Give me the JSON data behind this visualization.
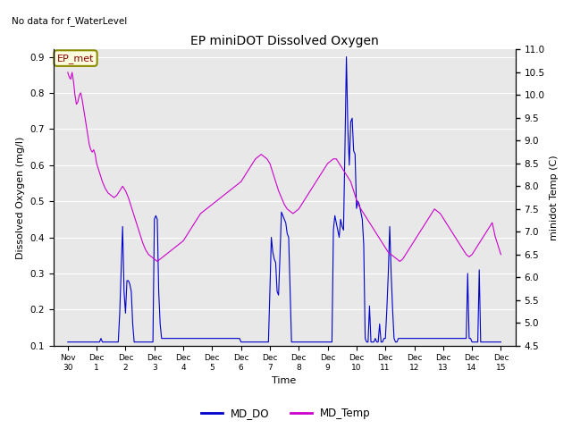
{
  "title": "EP miniDOT Dissolved Oxygen",
  "top_left_text": "No data for f_WaterLevel",
  "annotation_text": "EP_met",
  "xlabel": "Time",
  "ylabel_left": "Dissolved Oxygen (mg/l)",
  "ylabel_right": "minidot Temp (C)",
  "xlim_start": -0.5,
  "xlim_end": 15.5,
  "ylim_left": [
    0.1,
    0.92
  ],
  "ylim_right": [
    4.5,
    11.0
  ],
  "yticks_left": [
    0.1,
    0.2,
    0.3,
    0.4,
    0.5,
    0.6,
    0.7,
    0.8,
    0.9
  ],
  "yticks_right": [
    4.5,
    5.0,
    5.5,
    6.0,
    6.5,
    7.0,
    7.5,
    8.0,
    8.5,
    9.0,
    9.5,
    10.0,
    10.5,
    11.0
  ],
  "xtick_labels": [
    "Nov 30",
    "Dec 1",
    "Dec 2",
    "Dec 3",
    "Dec 4",
    "Dec 5",
    "Dec 6",
    "Dec 7",
    "Dec 8",
    "Dec 9",
    "Dec 10",
    "Dec 11",
    "Dec 12",
    "Dec 13",
    "Dec 14",
    "Dec 15"
  ],
  "xtick_positions": [
    0,
    1,
    2,
    3,
    4,
    5,
    6,
    7,
    8,
    9,
    10,
    11,
    12,
    13,
    14,
    15
  ],
  "color_DO": "#0000cc",
  "color_Temp": "#cc00cc",
  "bg_color": "#e8e8e8",
  "legend_DO": "MD_DO",
  "legend_Temp": "MD_Temp",
  "MD_DO_x": [
    0.0,
    0.05,
    0.1,
    0.15,
    0.2,
    0.25,
    0.3,
    0.35,
    0.4,
    0.45,
    0.5,
    0.55,
    0.6,
    0.65,
    0.7,
    0.75,
    0.8,
    0.85,
    0.9,
    0.95,
    1.0,
    1.05,
    1.1,
    1.15,
    1.2,
    1.25,
    1.35,
    1.4,
    1.45,
    1.5,
    1.55,
    1.6,
    1.65,
    1.7,
    1.75,
    1.8,
    1.85,
    1.9,
    1.95,
    2.0,
    2.05,
    2.1,
    2.15,
    2.2,
    2.25,
    2.3,
    2.35,
    2.4,
    2.45,
    2.5,
    2.55,
    2.6,
    2.65,
    2.7,
    2.75,
    2.8,
    2.85,
    2.9,
    2.95,
    3.0,
    3.05,
    3.1,
    3.15,
    3.2,
    3.25,
    3.3,
    3.35,
    3.4,
    3.45,
    3.5,
    3.55,
    3.6,
    3.65,
    3.7,
    3.75,
    3.8,
    3.85,
    3.9,
    3.95,
    4.0,
    4.05,
    4.1,
    4.15,
    4.2,
    4.25,
    4.3,
    4.35,
    4.4,
    4.45,
    4.5,
    4.55,
    4.6,
    4.65,
    4.7,
    4.75,
    4.8,
    4.85,
    4.9,
    4.95,
    5.0,
    5.05,
    5.1,
    5.15,
    5.2,
    5.25,
    5.3,
    5.35,
    5.4,
    5.45,
    5.5,
    5.55,
    5.6,
    5.65,
    5.7,
    5.75,
    5.8,
    5.85,
    5.9,
    5.95,
    6.0,
    6.05,
    6.1,
    6.15,
    6.2,
    6.25,
    6.3,
    6.35,
    6.4,
    6.45,
    6.5,
    6.55,
    6.6,
    6.65,
    6.7,
    6.75,
    6.8,
    6.85,
    6.9,
    6.95,
    7.0,
    7.05,
    7.1,
    7.15,
    7.2,
    7.25,
    7.3,
    7.35,
    7.4,
    7.45,
    7.5,
    7.55,
    7.6,
    7.65,
    7.7,
    7.75,
    7.8,
    7.85,
    7.9,
    7.95,
    8.0,
    8.05,
    8.1,
    8.15,
    8.2,
    8.25,
    8.3,
    8.35,
    8.4,
    8.45,
    8.5,
    8.55,
    8.6,
    8.65,
    8.7,
    8.75,
    8.8,
    8.85,
    8.9,
    8.95,
    9.0,
    9.05,
    9.1,
    9.15,
    9.2,
    9.25,
    9.3,
    9.35,
    9.4,
    9.45,
    9.5,
    9.55,
    9.6,
    9.65,
    9.7,
    9.75,
    9.8,
    9.85,
    9.9,
    9.95,
    10.0,
    10.05,
    10.1,
    10.15,
    10.2,
    10.25,
    10.3,
    10.35,
    10.4,
    10.45,
    10.5,
    10.55,
    10.6,
    10.65,
    10.7,
    10.75,
    10.8,
    10.85,
    10.9,
    10.95,
    11.0,
    11.05,
    11.1,
    11.15,
    11.2,
    11.25,
    11.3,
    11.35,
    11.4,
    11.45,
    11.5,
    11.55,
    11.6,
    11.65,
    11.7,
    11.75,
    11.8,
    11.85,
    11.9,
    11.95,
    12.0,
    12.05,
    12.1,
    12.15,
    12.2,
    12.25,
    12.3,
    12.35,
    12.4,
    12.45,
    12.5,
    12.55,
    12.6,
    12.65,
    12.7,
    12.75,
    12.8,
    12.85,
    12.9,
    12.95,
    13.0,
    13.05,
    13.1,
    13.15,
    13.2,
    13.25,
    13.3,
    13.35,
    13.4,
    13.45,
    13.5,
    13.55,
    13.6,
    13.65,
    13.7,
    13.75,
    13.8,
    13.85,
    13.9,
    13.95,
    14.0,
    14.05,
    14.1,
    14.15,
    14.2,
    14.25,
    14.3,
    14.35,
    14.4,
    14.45,
    14.5,
    14.55,
    14.6,
    14.65,
    14.7,
    14.75,
    14.8,
    14.85,
    14.9,
    14.95,
    15.0
  ],
  "MD_DO_y": [
    0.11,
    0.11,
    0.11,
    0.11,
    0.11,
    0.11,
    0.11,
    0.11,
    0.11,
    0.11,
    0.11,
    0.11,
    0.11,
    0.11,
    0.11,
    0.11,
    0.11,
    0.11,
    0.11,
    0.11,
    0.11,
    0.11,
    0.11,
    0.12,
    0.11,
    0.11,
    0.11,
    0.11,
    0.11,
    0.11,
    0.11,
    0.11,
    0.11,
    0.11,
    0.11,
    0.19,
    0.31,
    0.43,
    0.25,
    0.19,
    0.28,
    0.28,
    0.27,
    0.25,
    0.16,
    0.11,
    0.11,
    0.11,
    0.11,
    0.11,
    0.11,
    0.11,
    0.11,
    0.11,
    0.11,
    0.11,
    0.11,
    0.11,
    0.11,
    0.45,
    0.46,
    0.45,
    0.25,
    0.16,
    0.12,
    0.12,
    0.12,
    0.12,
    0.12,
    0.12,
    0.12,
    0.12,
    0.12,
    0.12,
    0.12,
    0.12,
    0.12,
    0.12,
    0.12,
    0.12,
    0.12,
    0.12,
    0.12,
    0.12,
    0.12,
    0.12,
    0.12,
    0.12,
    0.12,
    0.12,
    0.12,
    0.12,
    0.12,
    0.12,
    0.12,
    0.12,
    0.12,
    0.12,
    0.12,
    0.12,
    0.12,
    0.12,
    0.12,
    0.12,
    0.12,
    0.12,
    0.12,
    0.12,
    0.12,
    0.12,
    0.12,
    0.12,
    0.12,
    0.12,
    0.12,
    0.12,
    0.12,
    0.12,
    0.12,
    0.11,
    0.11,
    0.11,
    0.11,
    0.11,
    0.11,
    0.11,
    0.11,
    0.11,
    0.11,
    0.11,
    0.11,
    0.11,
    0.11,
    0.11,
    0.11,
    0.11,
    0.11,
    0.11,
    0.11,
    0.25,
    0.4,
    0.36,
    0.34,
    0.33,
    0.25,
    0.24,
    0.35,
    0.47,
    0.46,
    0.45,
    0.44,
    0.41,
    0.4,
    0.25,
    0.11,
    0.11,
    0.11,
    0.11,
    0.11,
    0.11,
    0.11,
    0.11,
    0.11,
    0.11,
    0.11,
    0.11,
    0.11,
    0.11,
    0.11,
    0.11,
    0.11,
    0.11,
    0.11,
    0.11,
    0.11,
    0.11,
    0.11,
    0.11,
    0.11,
    0.11,
    0.11,
    0.11,
    0.11,
    0.42,
    0.46,
    0.44,
    0.42,
    0.4,
    0.45,
    0.43,
    0.42,
    0.65,
    0.9,
    0.7,
    0.6,
    0.72,
    0.73,
    0.64,
    0.63,
    0.48,
    0.5,
    0.49,
    0.47,
    0.45,
    0.38,
    0.12,
    0.11,
    0.11,
    0.21,
    0.11,
    0.11,
    0.11,
    0.12,
    0.11,
    0.11,
    0.16,
    0.11,
    0.11,
    0.12,
    0.12,
    0.2,
    0.3,
    0.43,
    0.3,
    0.2,
    0.12,
    0.11,
    0.11,
    0.12,
    0.12,
    0.12,
    0.12,
    0.12,
    0.12,
    0.12,
    0.12,
    0.12,
    0.12,
    0.12,
    0.12,
    0.12,
    0.12,
    0.12,
    0.12,
    0.12,
    0.12,
    0.12,
    0.12,
    0.12,
    0.12,
    0.12,
    0.12,
    0.12,
    0.12,
    0.12,
    0.12,
    0.12,
    0.12,
    0.12,
    0.12,
    0.12,
    0.12,
    0.12,
    0.12,
    0.12,
    0.12,
    0.12,
    0.12,
    0.12,
    0.12,
    0.12,
    0.12,
    0.12,
    0.12,
    0.12,
    0.12,
    0.3,
    0.12,
    0.12,
    0.11,
    0.11,
    0.11,
    0.11,
    0.11,
    0.31,
    0.11,
    0.11,
    0.11,
    0.11,
    0.11,
    0.11,
    0.11,
    0.11,
    0.11,
    0.11,
    0.11,
    0.11,
    0.11,
    0.11,
    0.11
  ],
  "MD_Temp_x": [
    0.0,
    0.05,
    0.1,
    0.15,
    0.2,
    0.25,
    0.3,
    0.35,
    0.4,
    0.45,
    0.5,
    0.55,
    0.6,
    0.65,
    0.7,
    0.75,
    0.8,
    0.85,
    0.9,
    0.95,
    1.0,
    1.1,
    1.2,
    1.3,
    1.4,
    1.5,
    1.6,
    1.7,
    1.8,
    1.9,
    2.0,
    2.1,
    2.2,
    2.3,
    2.4,
    2.5,
    2.6,
    2.7,
    2.8,
    2.9,
    3.0,
    3.1,
    3.2,
    3.3,
    3.4,
    3.5,
    3.6,
    3.7,
    3.8,
    3.9,
    4.0,
    4.1,
    4.2,
    4.3,
    4.4,
    4.5,
    4.6,
    4.7,
    4.8,
    4.9,
    5.0,
    5.1,
    5.2,
    5.3,
    5.4,
    5.5,
    5.6,
    5.7,
    5.8,
    5.9,
    6.0,
    6.1,
    6.2,
    6.3,
    6.4,
    6.5,
    6.6,
    6.7,
    6.8,
    6.9,
    7.0,
    7.1,
    7.2,
    7.3,
    7.4,
    7.5,
    7.6,
    7.7,
    7.8,
    7.9,
    8.0,
    8.1,
    8.2,
    8.3,
    8.4,
    8.5,
    8.6,
    8.7,
    8.8,
    8.9,
    9.0,
    9.1,
    9.2,
    9.3,
    9.4,
    9.5,
    9.6,
    9.7,
    9.8,
    9.9,
    10.0,
    10.1,
    10.2,
    10.3,
    10.4,
    10.5,
    10.6,
    10.7,
    10.8,
    10.9,
    11.0,
    11.1,
    11.2,
    11.3,
    11.4,
    11.5,
    11.6,
    11.7,
    11.8,
    11.9,
    12.0,
    12.1,
    12.2,
    12.3,
    12.4,
    12.5,
    12.6,
    12.7,
    12.8,
    12.9,
    13.0,
    13.1,
    13.2,
    13.3,
    13.4,
    13.5,
    13.6,
    13.7,
    13.8,
    13.9,
    14.0,
    14.1,
    14.2,
    14.3,
    14.4,
    14.5,
    14.6,
    14.7,
    14.8,
    14.9,
    15.0
  ],
  "MD_Temp_y": [
    10.5,
    10.4,
    10.35,
    10.5,
    10.3,
    10.0,
    9.8,
    9.85,
    10.0,
    10.05,
    9.9,
    9.7,
    9.5,
    9.3,
    9.1,
    8.9,
    8.8,
    8.75,
    8.8,
    8.7,
    8.5,
    8.3,
    8.1,
    7.95,
    7.85,
    7.8,
    7.75,
    7.8,
    7.9,
    8.0,
    7.9,
    7.75,
    7.55,
    7.35,
    7.15,
    6.95,
    6.75,
    6.6,
    6.5,
    6.45,
    6.4,
    6.35,
    6.4,
    6.45,
    6.5,
    6.55,
    6.6,
    6.65,
    6.7,
    6.75,
    6.8,
    6.9,
    7.0,
    7.1,
    7.2,
    7.3,
    7.4,
    7.45,
    7.5,
    7.55,
    7.6,
    7.65,
    7.7,
    7.75,
    7.8,
    7.85,
    7.9,
    7.95,
    8.0,
    8.05,
    8.1,
    8.2,
    8.3,
    8.4,
    8.5,
    8.6,
    8.65,
    8.7,
    8.65,
    8.6,
    8.5,
    8.3,
    8.1,
    7.9,
    7.75,
    7.6,
    7.5,
    7.45,
    7.4,
    7.45,
    7.5,
    7.6,
    7.7,
    7.8,
    7.9,
    8.0,
    8.1,
    8.2,
    8.3,
    8.4,
    8.5,
    8.55,
    8.6,
    8.6,
    8.5,
    8.4,
    8.3,
    8.2,
    8.1,
    7.9,
    7.7,
    7.55,
    7.45,
    7.35,
    7.25,
    7.15,
    7.05,
    6.95,
    6.85,
    6.75,
    6.65,
    6.55,
    6.5,
    6.45,
    6.4,
    6.35,
    6.4,
    6.5,
    6.6,
    6.7,
    6.8,
    6.9,
    7.0,
    7.1,
    7.2,
    7.3,
    7.4,
    7.5,
    7.45,
    7.4,
    7.3,
    7.2,
    7.1,
    7.0,
    6.9,
    6.8,
    6.7,
    6.6,
    6.5,
    6.45,
    6.5,
    6.6,
    6.7,
    6.8,
    6.9,
    7.0,
    7.1,
    7.2,
    6.9,
    6.7,
    6.5
  ]
}
